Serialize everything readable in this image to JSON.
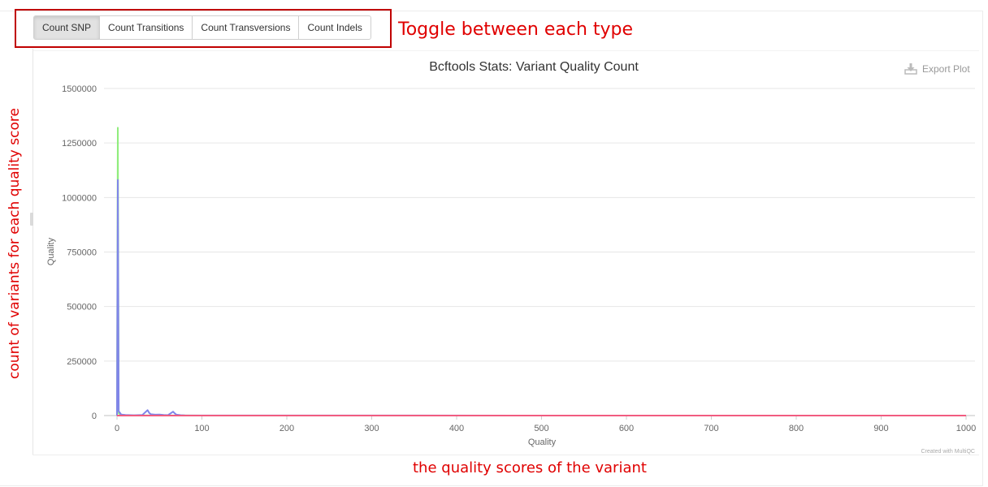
{
  "toolbar": {
    "buttons": [
      "Count SNP",
      "Count Transitions",
      "Count Transversions",
      "Count Indels"
    ],
    "active_index": 0
  },
  "export": {
    "label": "Export Plot",
    "icon": "download-icon"
  },
  "annotations": {
    "toggle_note": "Toggle between each type",
    "y_axis_note": "count of variants for each quality score",
    "x_axis_note": "the quality scores of the variant",
    "color": "#e00000"
  },
  "footer": {
    "credit": "Created with MultiQC"
  },
  "chart_data": {
    "type": "line",
    "title": "Bcftools Stats: Variant Quality Count",
    "xlabel": "Quality",
    "ylabel": "Quality",
    "xlim": [
      0,
      1000
    ],
    "ylim": [
      0,
      1500000
    ],
    "x_ticks": [
      0,
      100,
      200,
      300,
      400,
      500,
      600,
      700,
      800,
      900,
      1000
    ],
    "y_ticks": [
      0,
      250000,
      500000,
      750000,
      1000000,
      1250000,
      1500000
    ],
    "grid": true,
    "series": [
      {
        "color": "#90ed7d",
        "x": [
          0,
          1,
          2,
          5,
          10,
          20,
          30,
          36,
          40,
          50,
          60,
          66,
          70,
          80,
          100,
          1000
        ],
        "y": [
          0,
          1320000,
          10000,
          2000,
          1000,
          500,
          500,
          800,
          500,
          400,
          300,
          400,
          300,
          200,
          100,
          0
        ]
      },
      {
        "color": "#8085e9",
        "x": [
          0,
          1,
          2,
          5,
          10,
          20,
          30,
          36,
          38,
          40,
          45,
          50,
          55,
          60,
          66,
          68,
          70,
          75,
          80,
          100,
          1000
        ],
        "y": [
          0,
          1080000,
          20000,
          5000,
          2500,
          1500,
          3000,
          25000,
          12000,
          6000,
          4000,
          5000,
          3000,
          2000,
          18000,
          10000,
          4000,
          2000,
          1000,
          200,
          0
        ]
      },
      {
        "color": "#f15c80",
        "x": [
          0,
          1000
        ],
        "y": [
          0,
          0
        ]
      }
    ]
  }
}
